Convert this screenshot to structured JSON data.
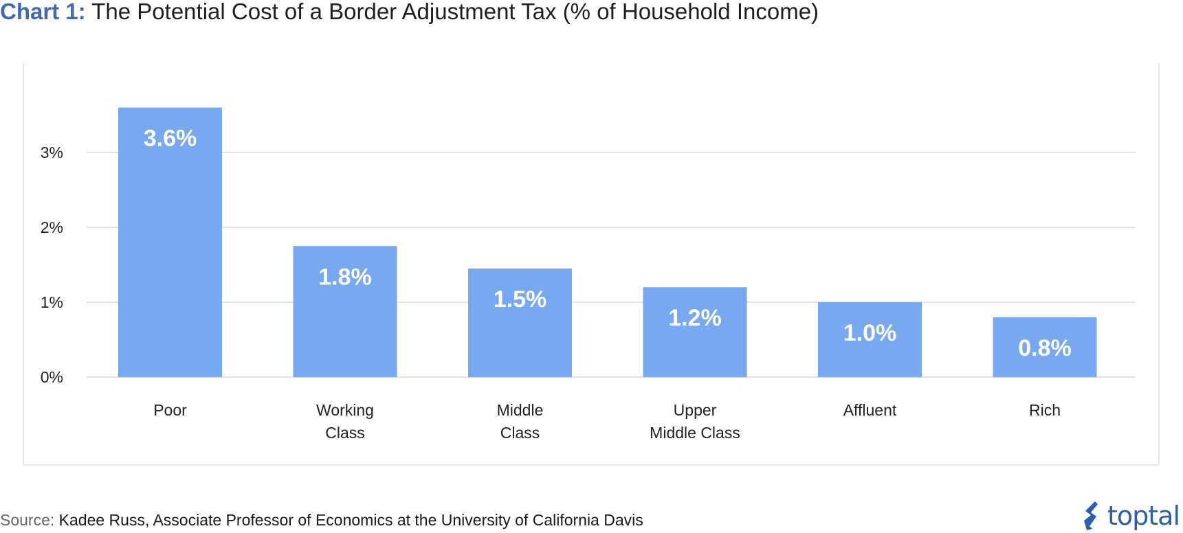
{
  "title": {
    "prefix": "Chart 1:",
    "text": "The Potential Cost of a Border Adjustment Tax (% of Household Income)"
  },
  "chart_data": {
    "type": "bar",
    "categories": [
      [
        "Poor"
      ],
      [
        "Working",
        "Class"
      ],
      [
        "Middle",
        "Class"
      ],
      [
        "Upper",
        "Middle Class"
      ],
      [
        "Affluent"
      ],
      [
        "Rich"
      ]
    ],
    "values": [
      3.6,
      1.75,
      1.45,
      1.2,
      1.0,
      0.8
    ],
    "data_labels": [
      "3.6%",
      "1.8%",
      "1.5%",
      "1.2%",
      "1.0%",
      "0.8%"
    ],
    "yticks": [
      {
        "value": 0,
        "label": "0%"
      },
      {
        "value": 1,
        "label": "1%"
      },
      {
        "value": 2,
        "label": "2%"
      },
      {
        "value": 3,
        "label": "3%"
      }
    ],
    "ylim": [
      0,
      4
    ],
    "grid": true,
    "legend": "none",
    "bar_color": "#77a8f0",
    "grid_color": "#e2e2e2"
  },
  "source": {
    "label": "Source:",
    "text": "Kadee Russ, Associate Professor of Economics at the University of California Davis"
  },
  "logo": {
    "text": "toptal",
    "icon": "toptal-logo-icon",
    "color": "#2d5dab"
  }
}
